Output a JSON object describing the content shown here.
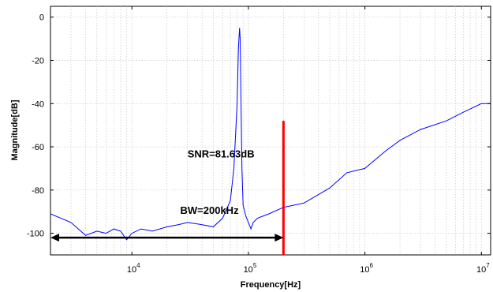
{
  "chart_data": {
    "type": "line",
    "xlabel": "Frequency[Hz]",
    "ylabel": "Magnitude[dB]",
    "x_scale": "log",
    "xlim": [
      2000,
      12000000
    ],
    "ylim": [
      -110,
      5
    ],
    "x_ticks": [
      {
        "value": 10000,
        "base": "10",
        "exp": "4"
      },
      {
        "value": 100000,
        "base": "10",
        "exp": "5"
      },
      {
        "value": 1000000,
        "base": "10",
        "exp": "6"
      },
      {
        "value": 10000000,
        "base": "10",
        "exp": "7"
      }
    ],
    "y_ticks": [
      "0",
      "-20",
      "-40",
      "-60",
      "-80",
      "-100"
    ],
    "grid": true,
    "series": [
      {
        "color": "#0000ff",
        "x": [
          2000,
          3000,
          4000,
          5000,
          6000,
          7000,
          8000,
          9000,
          10000,
          12000,
          15000,
          20000,
          25000,
          30000,
          40000,
          50000,
          60000,
          70000,
          75000,
          80000,
          82000,
          84000,
          85000,
          86000,
          88000,
          90000,
          95000,
          100000,
          105000,
          110000,
          120000,
          150000,
          200000,
          300000,
          500000,
          700000,
          1000000,
          1500000,
          2000000,
          3000000,
          5000000,
          7000000,
          10000000,
          12000000
        ],
        "y": [
          -91,
          -95,
          -101,
          -99,
          -100,
          -98,
          -99,
          -103,
          -100,
          -98,
          -99,
          -97,
          -96,
          -95,
          -96,
          -97,
          -93,
          -85,
          -70,
          -40,
          -15,
          -5,
          -10,
          -30,
          -70,
          -87,
          -92,
          -95,
          -98,
          -95,
          -93,
          -91,
          -88,
          -86,
          -79,
          -72,
          -70,
          -62,
          -57,
          -52,
          -48,
          -44,
          -40,
          -40
        ]
      }
    ],
    "markers": [
      {
        "type": "vertical-line",
        "x": 200000,
        "y_from": -110,
        "y_to": -48,
        "color": "#ff0000"
      },
      {
        "type": "double-arrow",
        "x_from": 2000,
        "x_to": 200000,
        "y": -102,
        "color": "#000000"
      }
    ],
    "annotations": [
      {
        "text": "SNR=81.63dB",
        "x": 30000,
        "y": -65
      },
      {
        "text": "BW=200kHz",
        "x": 26000,
        "y": -91
      }
    ]
  }
}
